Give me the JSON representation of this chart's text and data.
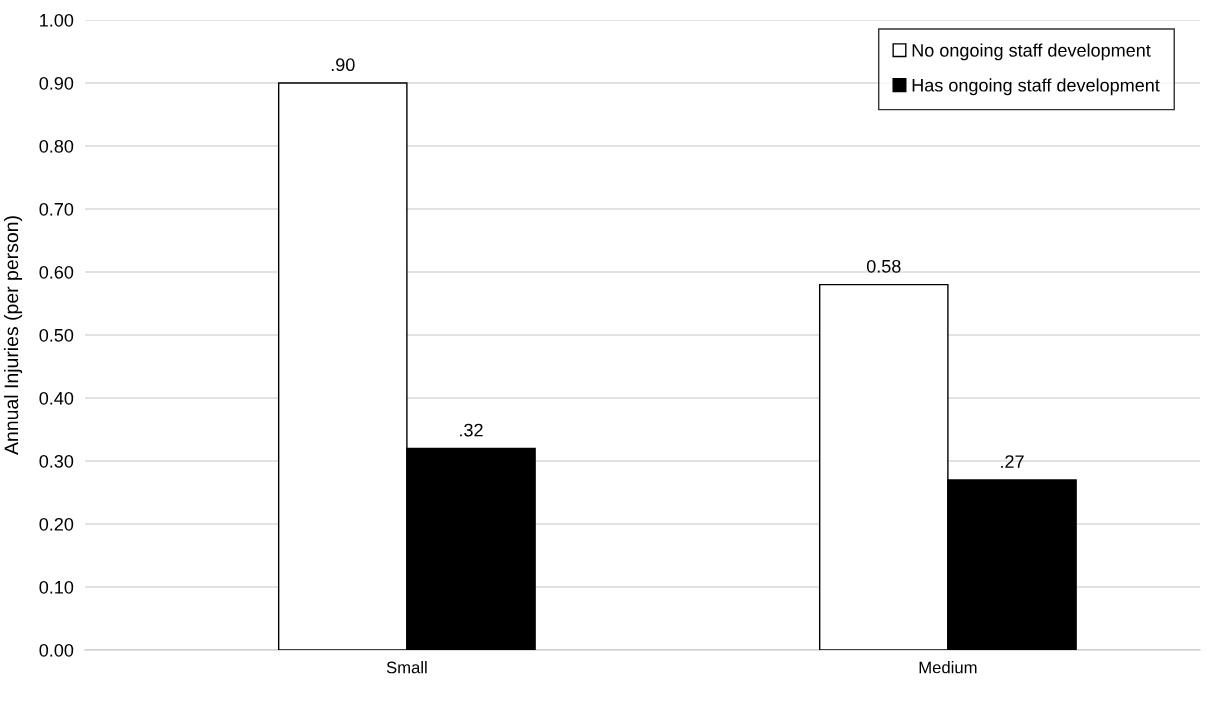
{
  "chart_data": {
    "type": "bar",
    "ylabel": "Annual Injuries (per person)",
    "categories": [
      "Small",
      "Medium"
    ],
    "series": [
      {
        "name": "No ongoing staff development",
        "color": "#ffffff",
        "values": [
          0.9,
          0.58
        ],
        "value_labels": [
          ".90",
          "0.58"
        ]
      },
      {
        "name": "Has ongoing staff development",
        "color": "#000000",
        "values": [
          0.32,
          0.27
        ],
        "value_labels": [
          ".32",
          ".27"
        ]
      }
    ],
    "ylim": [
      0,
      1
    ],
    "yticks": [
      {
        "value": 0,
        "label": "0.00"
      },
      {
        "value": 0.1,
        "label": "0.10"
      },
      {
        "value": 0.2,
        "label": "0.20"
      },
      {
        "value": 0.3,
        "label": "0.30"
      },
      {
        "value": 0.4,
        "label": "0.40"
      },
      {
        "value": 0.5,
        "label": "0.50"
      },
      {
        "value": 0.6,
        "label": "0.60"
      },
      {
        "value": 0.7,
        "label": "0.70"
      },
      {
        "value": 0.8,
        "label": "0.80"
      },
      {
        "value": 0.9,
        "label": "0.90"
      },
      {
        "value": 1.0,
        "label": "1.00"
      }
    ],
    "grid": "y",
    "legend": "top right"
  }
}
